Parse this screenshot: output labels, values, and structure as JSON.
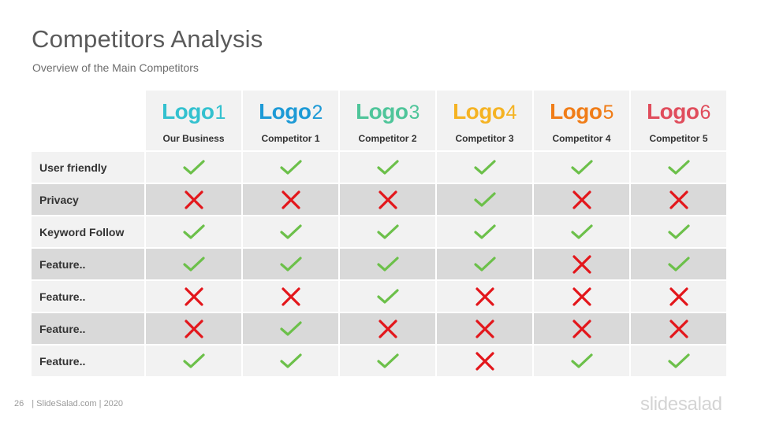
{
  "title": "Competitors Analysis",
  "subtitle": "Overview of the Main Competitors",
  "columns": [
    {
      "logo_text": "Logo",
      "logo_num": "1",
      "name": "Our Business",
      "color": "#33c1cf"
    },
    {
      "logo_text": "Logo",
      "logo_num": "2",
      "name": "Competitor  1",
      "color": "#1d9ad6"
    },
    {
      "logo_text": "Logo",
      "logo_num": "3",
      "name": "Competitor  2",
      "color": "#4fc59a"
    },
    {
      "logo_text": "Logo",
      "logo_num": "4",
      "name": "Competitor  3",
      "color": "#f5b323"
    },
    {
      "logo_text": "Logo",
      "logo_num": "5",
      "name": "Competitor  4",
      "color": "#f07d18"
    },
    {
      "logo_text": "Logo",
      "logo_num": "6",
      "name": "Competitor  5",
      "color": "#e04d5c"
    }
  ],
  "rows": [
    {
      "label": "User friendly",
      "values": [
        true,
        true,
        true,
        true,
        true,
        true
      ]
    },
    {
      "label": "Privacy",
      "values": [
        false,
        false,
        false,
        true,
        false,
        false
      ]
    },
    {
      "label": "Keyword Follow",
      "values": [
        true,
        true,
        true,
        true,
        true,
        true
      ]
    },
    {
      "label": "Feature..",
      "values": [
        true,
        true,
        true,
        true,
        false,
        true
      ]
    },
    {
      "label": "Feature..",
      "values": [
        false,
        false,
        true,
        false,
        false,
        false
      ]
    },
    {
      "label": "Feature..",
      "values": [
        false,
        true,
        false,
        false,
        false,
        false
      ]
    },
    {
      "label": "Feature..",
      "values": [
        true,
        true,
        true,
        false,
        true,
        true
      ]
    }
  ],
  "icons": {
    "yes": "check-icon",
    "no": "cross-icon"
  },
  "colors": {
    "check": "#6cc04a",
    "cross": "#e3161b"
  },
  "footer": {
    "page_number": "26",
    "text": "| SlideSalad.com | 2020"
  },
  "brand": "slidesalad"
}
